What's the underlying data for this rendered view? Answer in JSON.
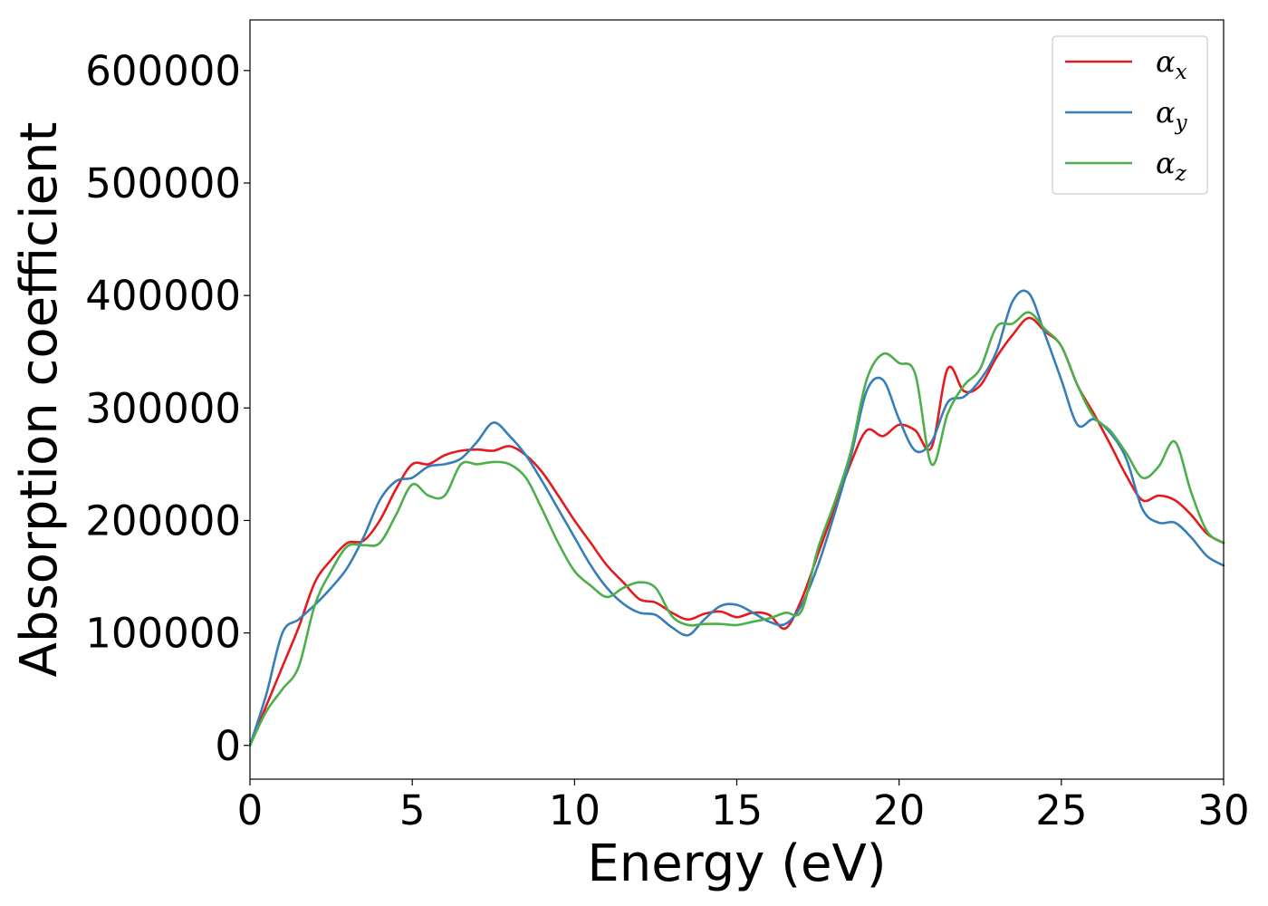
{
  "chart_data": {
    "type": "line",
    "title": "",
    "xlabel": "Energy (eV)",
    "ylabel": "Absorption coefficient",
    "xlim": [
      0,
      30
    ],
    "ylim": [
      -30000,
      645000
    ],
    "xticks": [
      0,
      5,
      10,
      15,
      20,
      25,
      30
    ],
    "yticks": [
      0,
      100000,
      200000,
      300000,
      400000,
      500000,
      600000
    ],
    "grid": false,
    "legend_position": "top-right",
    "series": [
      {
        "name": "α",
        "subscript": "x",
        "color": "#e41a1c",
        "x": [
          0,
          0.5,
          1,
          1.5,
          2,
          2.5,
          3,
          3.5,
          4,
          4.5,
          5,
          5.5,
          6,
          6.5,
          7,
          7.5,
          8,
          8.5,
          9,
          9.5,
          10,
          10.5,
          11,
          11.5,
          12,
          12.5,
          13,
          13.5,
          14,
          14.5,
          15,
          15.5,
          16,
          16.5,
          17,
          17.5,
          18,
          18.5,
          19,
          19.5,
          20,
          20.5,
          21,
          21.5,
          22,
          22.5,
          23,
          23.5,
          24,
          24.5,
          25,
          25.5,
          26,
          26.5,
          27,
          27.5,
          28,
          28.5,
          29,
          29.5,
          30
        ],
        "y": [
          0,
          35000,
          70000,
          105000,
          145000,
          165000,
          180000,
          182000,
          200000,
          228000,
          250000,
          250000,
          258000,
          262000,
          263000,
          262000,
          266000,
          258000,
          243000,
          222000,
          200000,
          180000,
          160000,
          145000,
          130000,
          127000,
          118000,
          112000,
          117000,
          119000,
          114000,
          118000,
          116000,
          104000,
          130000,
          170000,
          210000,
          250000,
          280000,
          275000,
          285000,
          280000,
          265000,
          335000,
          315000,
          320000,
          345000,
          365000,
          380000,
          368000,
          355000,
          320000,
          295000,
          268000,
          240000,
          218000,
          222000,
          218000,
          205000,
          188000,
          180000
        ]
      },
      {
        "name": "α",
        "subscript": "y",
        "color": "#377eb8",
        "x": [
          0,
          0.5,
          1,
          1.5,
          2,
          2.5,
          3,
          3.5,
          4,
          4.5,
          5,
          5.5,
          6,
          6.5,
          7,
          7.5,
          8,
          8.5,
          9,
          9.5,
          10,
          10.5,
          11,
          11.5,
          12,
          12.5,
          13,
          13.5,
          14,
          14.5,
          15,
          15.5,
          16,
          16.5,
          17,
          17.5,
          18,
          18.5,
          19,
          19.5,
          20,
          20.5,
          21,
          21.5,
          22,
          22.5,
          23,
          23.5,
          24,
          24.5,
          25,
          25.5,
          26,
          26.5,
          27,
          27.5,
          28,
          28.5,
          29,
          29.5,
          30
        ],
        "y": [
          0,
          45000,
          100000,
          112000,
          125000,
          140000,
          158000,
          185000,
          218000,
          235000,
          238000,
          248000,
          250000,
          255000,
          270000,
          287000,
          275000,
          258000,
          235000,
          210000,
          185000,
          160000,
          140000,
          126000,
          118000,
          116000,
          105000,
          98000,
          112000,
          124000,
          125000,
          118000,
          110000,
          108000,
          125000,
          160000,
          205000,
          255000,
          315000,
          325000,
          290000,
          262000,
          270000,
          305000,
          310000,
          325000,
          350000,
          395000,
          402000,
          365000,
          325000,
          285000,
          290000,
          278000,
          255000,
          210000,
          198000,
          198000,
          185000,
          168000,
          160000
        ]
      },
      {
        "name": "α",
        "subscript": "z",
        "color": "#4daf4a",
        "x": [
          0,
          0.5,
          1,
          1.5,
          2,
          2.5,
          3,
          3.5,
          4,
          4.5,
          5,
          5.5,
          6,
          6.5,
          7,
          7.5,
          8,
          8.5,
          9,
          9.5,
          10,
          10.5,
          11,
          11.5,
          12,
          12.5,
          13,
          13.5,
          14,
          14.5,
          15,
          15.5,
          16,
          16.5,
          17,
          17.5,
          18,
          18.5,
          19,
          19.5,
          20,
          20.5,
          21,
          21.5,
          22,
          22.5,
          23,
          23.5,
          24,
          24.5,
          25,
          25.5,
          26,
          26.5,
          27,
          27.5,
          28,
          28.5,
          29,
          29.5,
          30
        ],
        "y": [
          0,
          30000,
          50000,
          70000,
          125000,
          155000,
          177000,
          178000,
          180000,
          205000,
          232000,
          222000,
          222000,
          250000,
          250000,
          252000,
          250000,
          238000,
          210000,
          180000,
          155000,
          142000,
          132000,
          140000,
          145000,
          140000,
          115000,
          107000,
          108000,
          108000,
          107000,
          110000,
          113000,
          118000,
          120000,
          175000,
          215000,
          260000,
          325000,
          348000,
          340000,
          330000,
          250000,
          295000,
          320000,
          335000,
          372000,
          375000,
          385000,
          370000,
          355000,
          320000,
          292000,
          280000,
          260000,
          238000,
          248000,
          270000,
          225000,
          190000,
          180000
        ]
      }
    ]
  }
}
